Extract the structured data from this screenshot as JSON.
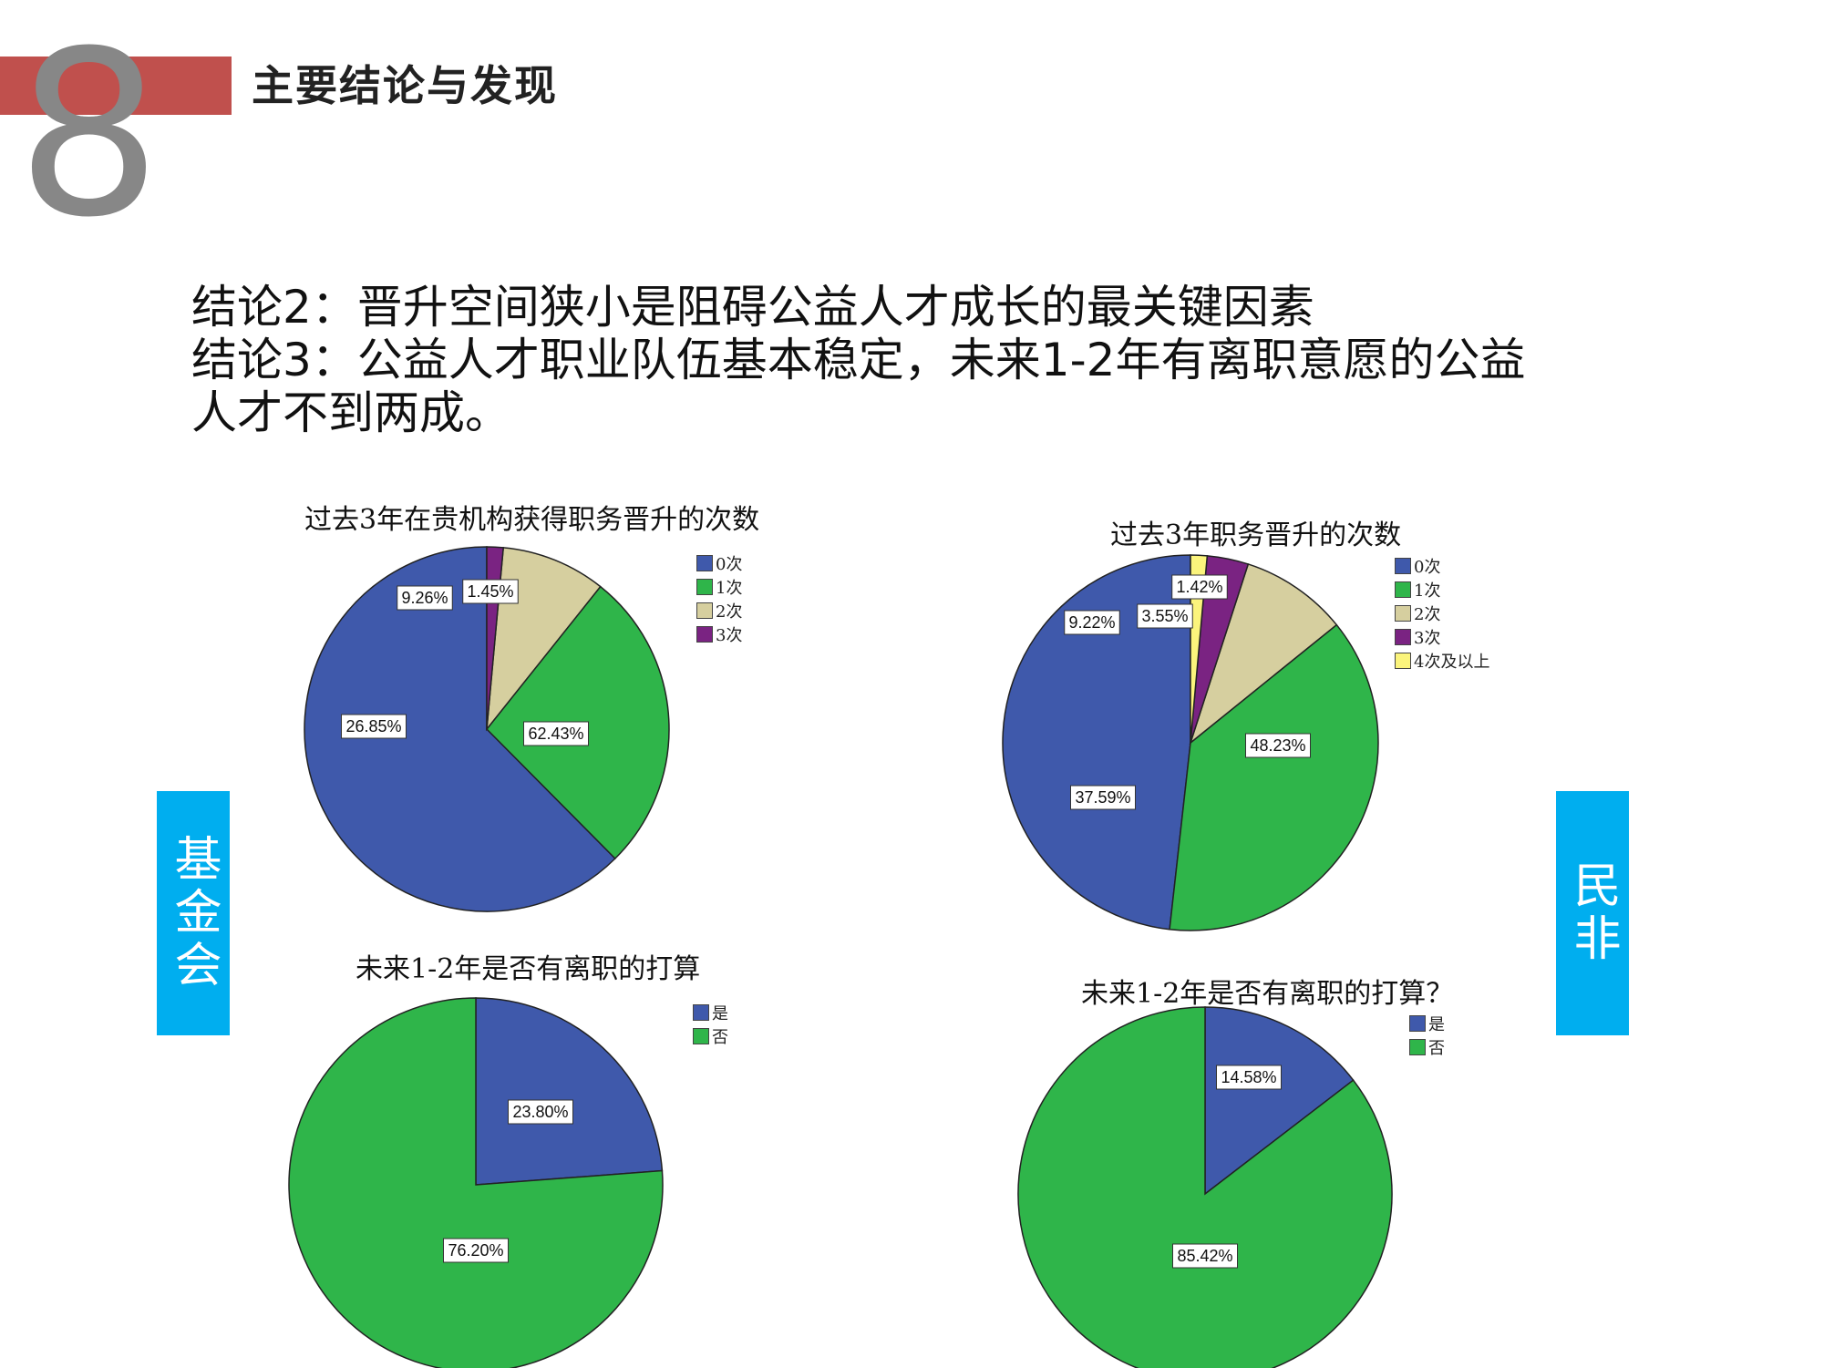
{
  "header": {
    "section_number": "8",
    "section_title": "主要结论与发现",
    "accent_color": "#c0504d"
  },
  "conclusions": {
    "line1": "结论2：晋升空间狭小是阻碍公益人才成长的最关键因素",
    "line2": "结论3：公益人才职业队伍基本稳定，未来1-2年有离职意愿的公益",
    "line3": "人才不到两成。"
  },
  "side_labels": {
    "left": "基金会",
    "right": "民非",
    "color": "#00aeef"
  },
  "chart_data": [
    {
      "type": "pie",
      "title": "过去3年在贵机构获得职务晋升的次数",
      "categories": [
        "0次",
        "1次",
        "2次",
        "3次"
      ],
      "values": [
        62.43,
        26.85,
        9.26,
        1.45
      ],
      "labels": [
        "62.43%",
        "26.85%",
        "9.26%",
        "1.45%"
      ],
      "colors": [
        "#3f59ab",
        "#2fb54a",
        "#d6cf9f",
        "#7a2382"
      ],
      "legend": "right"
    },
    {
      "type": "pie",
      "title": "过去3年职务晋升的次数",
      "categories": [
        "0次",
        "1次",
        "2次",
        "3次",
        "4次及以上"
      ],
      "values": [
        48.23,
        37.59,
        9.22,
        3.55,
        1.42
      ],
      "labels": [
        "48.23%",
        "37.59%",
        "9.22%",
        "3.55%",
        "1.42%"
      ],
      "colors": [
        "#3f59ab",
        "#2fb54a",
        "#d6cf9f",
        "#7a2382",
        "#fbf47c"
      ],
      "legend": "right"
    },
    {
      "type": "pie",
      "title": "未来1-2年是否有离职的打算",
      "categories": [
        "是",
        "否"
      ],
      "values": [
        23.8,
        76.2
      ],
      "labels": [
        "23.80%",
        "76.20%"
      ],
      "colors": [
        "#3f59ab",
        "#2fb54a"
      ],
      "legend": "right"
    },
    {
      "type": "pie",
      "title": "未来1-2年是否有离职的打算？",
      "categories": [
        "是",
        "否"
      ],
      "values": [
        14.58,
        85.42
      ],
      "labels": [
        "14.58%",
        "85.42%"
      ],
      "colors": [
        "#3f59ab",
        "#2fb54a"
      ],
      "legend": "right"
    }
  ]
}
